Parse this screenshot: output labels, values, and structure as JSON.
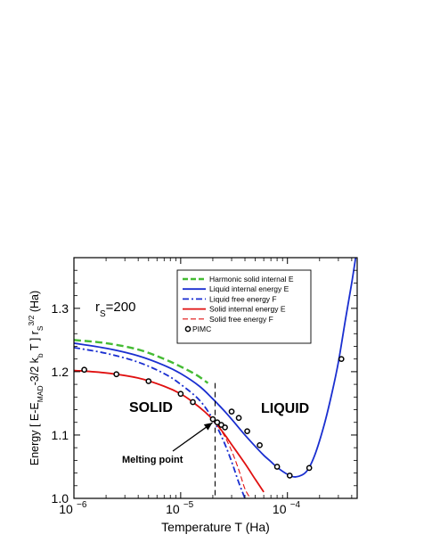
{
  "chart_data": {
    "type": "line",
    "xlabel": "Temperature T (Ha)",
    "ylabel_parts": {
      "main": "Energy [ E-E",
      "sub1": "MAD",
      "mid": "-3/2 k",
      "sub2": "b",
      "mid2": " T ] r",
      "sub3": "S",
      "sup3": "3/2",
      "end": " (Ha)"
    },
    "x_scale": "log",
    "xlim": [
      1e-06,
      0.00045
    ],
    "ylim": [
      1.0,
      1.38
    ],
    "x_ticks": [
      {
        "value": 1e-06,
        "base": "10",
        "exp": "−6"
      },
      {
        "value": 1e-05,
        "base": "10",
        "exp": "−5"
      },
      {
        "value": 0.0001,
        "base": "10",
        "exp": "−4"
      }
    ],
    "y_ticks": [
      {
        "value": 1.0,
        "label": "1.0"
      },
      {
        "value": 1.1,
        "label": "1.1"
      },
      {
        "value": 1.2,
        "label": "1.2"
      },
      {
        "value": 1.3,
        "label": "1.3"
      }
    ],
    "rs_label": {
      "main": "r",
      "sub": "S",
      "rest": "=200"
    },
    "region_labels": {
      "solid": "SOLID",
      "liquid": "LIQUID"
    },
    "annotation": {
      "text": "Melting point",
      "x": 2.1e-05,
      "y": 1.125
    },
    "melting_line_x": 2.1e-05,
    "legend_placement": "top-right",
    "series": [
      {
        "name": "Harmonic solid internal E",
        "color": "#44bb33",
        "style": "dashed",
        "x": [
          1e-06,
          2e-06,
          4e-06,
          7e-06,
          1e-05,
          1.4e-05,
          1.8e-05
        ],
        "y": [
          1.25,
          1.245,
          1.235,
          1.22,
          1.208,
          1.195,
          1.182
        ]
      },
      {
        "name": "Liquid internal energy E",
        "color": "#1a2fd0",
        "style": "solid",
        "x": [
          1e-06,
          2e-06,
          4e-06,
          7e-06,
          1e-05,
          1.5e-05,
          2e-05,
          2.5e-05,
          3e-05,
          4e-05,
          5e-05,
          6e-05,
          7e-05,
          8e-05,
          0.0001,
          0.00012,
          0.00015,
          0.00018,
          0.00022,
          0.00026,
          0.0003,
          0.00035,
          0.0004,
          0.00044
        ],
        "y": [
          1.245,
          1.237,
          1.225,
          1.21,
          1.197,
          1.177,
          1.157,
          1.14,
          1.125,
          1.1,
          1.082,
          1.068,
          1.058,
          1.049,
          1.038,
          1.034,
          1.042,
          1.068,
          1.115,
          1.165,
          1.215,
          1.283,
          1.34,
          1.385
        ]
      },
      {
        "name": "Liquid free energy F",
        "color": "#1a2fd0",
        "style": "dashdot",
        "x": [
          1e-06,
          2e-06,
          4e-06,
          7e-06,
          1e-05,
          1.5e-05,
          2e-05,
          2.5e-05,
          3e-05,
          3.5e-05,
          4e-05
        ],
        "y": [
          1.238,
          1.229,
          1.215,
          1.197,
          1.18,
          1.155,
          1.125,
          1.092,
          1.058,
          1.025,
          1.0
        ]
      },
      {
        "name": "Solid internal energy E",
        "color": "#e01010",
        "style": "solid",
        "x": [
          1e-06,
          2e-06,
          4e-06,
          7e-06,
          1e-05,
          1.3e-05,
          1.7e-05,
          2e-05,
          2.5e-05,
          3e-05,
          4e-05,
          5e-05,
          6e-05
        ],
        "y": [
          1.202,
          1.198,
          1.19,
          1.177,
          1.165,
          1.152,
          1.136,
          1.124,
          1.104,
          1.085,
          1.055,
          1.03,
          1.01
        ]
      },
      {
        "name": "Solid free energy F",
        "color": "#e01010",
        "style": "dashed-thin",
        "x": [
          2e-05,
          2.5e-05,
          3e-05,
          3.5e-05,
          4e-05,
          4.5e-05
        ],
        "y": [
          1.125,
          1.102,
          1.075,
          1.045,
          1.015,
          1.0
        ]
      },
      {
        "name": "PIMC",
        "color": "#000000",
        "style": "markers",
        "x": [
          1.25e-06,
          2.5e-06,
          5e-06,
          1e-05,
          1.3e-05,
          2e-05,
          2.2e-05,
          2.4e-05,
          2.6e-05,
          3e-05,
          3.5e-05,
          4.2e-05,
          5.5e-05,
          8e-05,
          0.000105,
          0.00016,
          0.00032
        ],
        "y": [
          1.203,
          1.196,
          1.185,
          1.165,
          1.152,
          1.125,
          1.12,
          1.116,
          1.112,
          1.137,
          1.127,
          1.106,
          1.084,
          1.05,
          1.036,
          1.048,
          1.22
        ]
      }
    ]
  }
}
